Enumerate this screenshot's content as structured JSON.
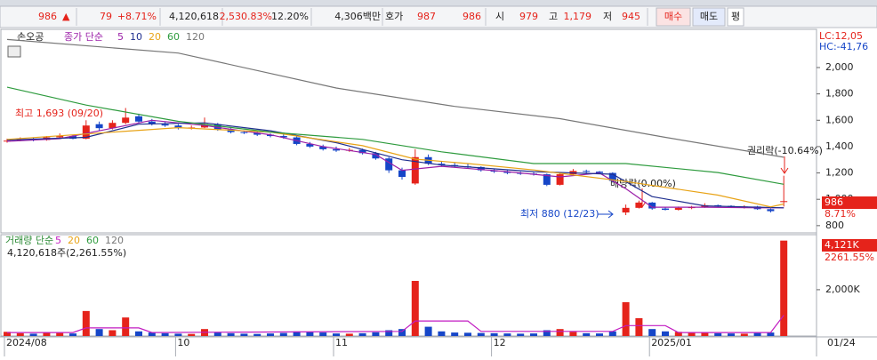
{
  "toolbar": {
    "price": "986",
    "arrow": "▲",
    "change": "79",
    "change_pct": "+8.71%",
    "volume": "4,120,618",
    "volume_pct": "2,530.83%",
    "turnover": "12.20%",
    "amount": "4,306백만",
    "quote_label": "호가",
    "ask": "987",
    "bid": "986",
    "open_label": "시",
    "open": "979",
    "high_label": "고",
    "high": "1,179",
    "low_label": "저",
    "low": "945",
    "buy": "매수",
    "sell": "매도",
    "avg": "평"
  },
  "chart_data": {
    "type": "candlestick",
    "stock": "손오공",
    "legend_label": "종가 단순",
    "candles": [
      [
        1440,
        1460,
        1430,
        1445
      ],
      [
        1445,
        1470,
        1440,
        1455
      ],
      [
        1460,
        1470,
        1440,
        1450
      ],
      [
        1450,
        1480,
        1445,
        1470
      ],
      [
        1470,
        1500,
        1465,
        1480
      ],
      [
        1480,
        1490,
        1455,
        1460
      ],
      [
        1460,
        1600,
        1455,
        1560
      ],
      [
        1570,
        1590,
        1520,
        1540
      ],
      [
        1540,
        1600,
        1530,
        1580
      ],
      [
        1580,
        1693,
        1570,
        1620
      ],
      [
        1630,
        1650,
        1580,
        1590
      ],
      [
        1590,
        1610,
        1560,
        1570
      ],
      [
        1570,
        1590,
        1550,
        1560
      ],
      [
        1560,
        1570,
        1530,
        1540
      ],
      [
        1540,
        1560,
        1530,
        1545
      ],
      [
        1545,
        1620,
        1540,
        1570
      ],
      [
        1570,
        1580,
        1520,
        1530
      ],
      [
        1530,
        1540,
        1500,
        1510
      ],
      [
        1510,
        1520,
        1495,
        1505
      ],
      [
        1505,
        1515,
        1480,
        1490
      ],
      [
        1490,
        1500,
        1470,
        1480
      ],
      [
        1480,
        1495,
        1460,
        1470
      ],
      [
        1470,
        1480,
        1410,
        1420
      ],
      [
        1420,
        1435,
        1390,
        1400
      ],
      [
        1400,
        1415,
        1370,
        1380
      ],
      [
        1380,
        1400,
        1360,
        1370
      ],
      [
        1370,
        1390,
        1360,
        1375
      ],
      [
        1375,
        1385,
        1340,
        1350
      ],
      [
        1350,
        1360,
        1300,
        1310
      ],
      [
        1310,
        1320,
        1200,
        1220
      ],
      [
        1220,
        1240,
        1150,
        1170
      ],
      [
        1120,
        1380,
        1110,
        1320
      ],
      [
        1320,
        1340,
        1260,
        1270
      ],
      [
        1270,
        1290,
        1250,
        1260
      ],
      [
        1260,
        1280,
        1240,
        1250
      ],
      [
        1250,
        1270,
        1235,
        1245
      ],
      [
        1245,
        1250,
        1210,
        1220
      ],
      [
        1220,
        1230,
        1200,
        1210
      ],
      [
        1210,
        1220,
        1190,
        1200
      ],
      [
        1200,
        1210,
        1185,
        1195
      ],
      [
        1195,
        1205,
        1180,
        1190
      ],
      [
        1190,
        1195,
        1100,
        1110
      ],
      [
        1110,
        1200,
        1105,
        1190
      ],
      [
        1190,
        1230,
        1185,
        1215
      ],
      [
        1215,
        1225,
        1200,
        1210
      ],
      [
        1210,
        1215,
        1190,
        1200
      ],
      [
        1200,
        1205,
        1130,
        1140
      ],
      [
        900,
        960,
        880,
        935
      ],
      [
        935,
        990,
        930,
        975
      ],
      [
        975,
        980,
        920,
        930
      ],
      [
        930,
        940,
        915,
        920
      ],
      [
        920,
        945,
        915,
        935
      ],
      [
        935,
        950,
        925,
        940
      ],
      [
        940,
        970,
        935,
        955
      ],
      [
        955,
        960,
        940,
        950
      ],
      [
        950,
        955,
        935,
        940
      ],
      [
        940,
        955,
        930,
        945
      ],
      [
        945,
        950,
        920,
        925
      ],
      [
        925,
        930,
        900,
        910
      ],
      [
        979,
        1179,
        945,
        986
      ]
    ],
    "up_color": "#e5231b",
    "down_color": "#1646c8",
    "ylim": [
      745,
      2290
    ],
    "yticks": [
      800,
      {
        "value": 1000,
        "label": "1,000"
      },
      {
        "value": 1200,
        "label": "1,200"
      },
      {
        "value": 1400,
        "label": "1,400"
      },
      {
        "value": 1600,
        "label": "1,600"
      },
      {
        "value": 1800,
        "label": "1,800"
      },
      {
        "value": 2000,
        "label": "2,000"
      }
    ],
    "xticks": [
      {
        "value": 0,
        "label": "2024/08"
      },
      {
        "value": 13,
        "label": "10"
      },
      {
        "value": 25,
        "label": "11"
      },
      {
        "value": 37,
        "label": "12"
      },
      {
        "value": 49,
        "label": "2025/01"
      }
    ],
    "date_label": "01/24",
    "ma_lines": [
      {
        "name": "5",
        "color": "#9b1fa8",
        "x": [
          0,
          4,
          8,
          11,
          15,
          20,
          24,
          28,
          30,
          33,
          38,
          42,
          45,
          47,
          49,
          53,
          57,
          59
        ],
        "values": [
          1440,
          1460,
          1540,
          1600,
          1560,
          1490,
          1400,
          1340,
          1220,
          1250,
          1210,
          1170,
          1200,
          1080,
          940,
          940,
          935,
          935
        ]
      },
      {
        "name": "10",
        "color": "#1f2f8f",
        "x": [
          0,
          6,
          10,
          15,
          20,
          25,
          30,
          33,
          40,
          46,
          49,
          53,
          59
        ],
        "values": [
          1450,
          1470,
          1570,
          1580,
          1520,
          1430,
          1300,
          1260,
          1210,
          1190,
          1020,
          950,
          935
        ]
      },
      {
        "name": "20",
        "color": "#e8a317",
        "x": [
          0,
          6,
          13,
          20,
          27,
          31,
          35,
          40,
          47,
          54,
          58,
          59
        ],
        "values": [
          1455,
          1496,
          1544,
          1510,
          1407,
          1305,
          1271,
          1223,
          1135,
          1032,
          943,
          964
        ]
      },
      {
        "name": "60",
        "color": "#2e9b3e",
        "x": [
          0,
          6,
          13,
          20,
          27,
          33,
          40,
          47,
          54,
          59
        ],
        "values": [
          1851,
          1715,
          1592,
          1510,
          1455,
          1360,
          1271,
          1271,
          1203,
          1114
        ]
      },
      {
        "name": "120",
        "color": "#777777",
        "x": [
          0,
          13,
          25,
          34,
          42,
          50,
          59
        ],
        "values": [
          2213,
          2110,
          1845,
          1705,
          1612,
          1470,
          1319
        ]
      }
    ],
    "annotations": {
      "high": "최고 1,693 (09/20)",
      "low": "최저 880 (12/23)",
      "rights": "권리락(-10.64%)",
      "dividend": "배당락(0.00%)"
    },
    "right_info": {
      "lc": "LC:12,05",
      "hc": "HC:-41,76",
      "last": "986",
      "last_pct": "8.71%"
    },
    "volume": {
      "label": "거래량 단순",
      "summary": "4,120,618주(2,261.55%)",
      "last": "4,121K",
      "last_pct": "2261.55%",
      "values": [
        180,
        120,
        100,
        150,
        130,
        110,
        1080,
        300,
        250,
        800,
        200,
        150,
        120,
        100,
        90,
        300,
        150,
        120,
        100,
        90,
        110,
        130,
        200,
        180,
        150,
        110,
        100,
        120,
        160,
        250,
        300,
        2380,
        400,
        200,
        150,
        140,
        130,
        120,
        110,
        100,
        110,
        250,
        300,
        180,
        120,
        110,
        200,
        1460,
        770,
        300,
        200,
        180,
        150,
        140,
        120,
        110,
        100,
        130,
        150,
        4121
      ],
      "ylim": [
        0,
        4300
      ],
      "yticks": [
        {
          "value": 2000,
          "label": "2,000K"
        }
      ],
      "series": [
        {
          "name": "5",
          "color": "#c21cc2",
          "x": [
            0,
            5,
            6,
            10,
            11,
            30,
            31,
            35,
            36,
            46,
            47,
            50,
            51,
            58,
            59
          ],
          "values": [
            150,
            150,
            350,
            350,
            150,
            200,
            650,
            650,
            200,
            200,
            450,
            450,
            150,
            150,
            900
          ]
        },
        {
          "name": "20",
          "color": "#e8a317"
        },
        {
          "name": "60",
          "color": "#2e9b3e"
        },
        {
          "name": "120",
          "color": "#777777"
        }
      ]
    }
  }
}
